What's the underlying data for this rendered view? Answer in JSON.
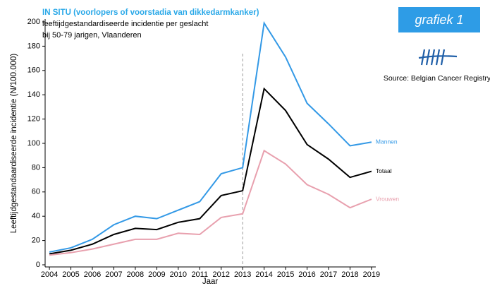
{
  "chart_data": {
    "type": "line",
    "title": "IN SITU (voorlopers of voorstadia van dikkedarmkanker)",
    "subtitle": [
      "leeftijdgestandardiseerde incidentie per geslacht",
      "bij 50-79 jarigen, Vlaanderen"
    ],
    "badge": "grafiek 1",
    "source": "Source: Belgian Cancer Registry",
    "xlabel": "Jaar",
    "ylabel": "Leeftijdgestandaardiseerde incidentie (N/100.000)",
    "x": [
      2004,
      2005,
      2006,
      2007,
      2008,
      2009,
      2010,
      2011,
      2012,
      2013,
      2014,
      2015,
      2016,
      2017,
      2018,
      2019
    ],
    "series": [
      {
        "name": "Mannen",
        "color": "#3399e6",
        "values": [
          10.5,
          14,
          21,
          33,
          40,
          38,
          45,
          52,
          75,
          80,
          199,
          171,
          133,
          116,
          98,
          101
        ]
      },
      {
        "name": "Totaal",
        "color": "#000000",
        "values": [
          9,
          12,
          17,
          25,
          30,
          29,
          35,
          38,
          57,
          61,
          145,
          127,
          99,
          87,
          72,
          77
        ]
      },
      {
        "name": "Vrouwen",
        "color": "#e8a0ae",
        "values": [
          8,
          10,
          13,
          17,
          21,
          21,
          26,
          25,
          39,
          42,
          94,
          83,
          66,
          58,
          47,
          54
        ]
      }
    ],
    "xlim": [
      2003.8,
      2019.2
    ],
    "xticks": [
      2004,
      2005,
      2006,
      2007,
      2008,
      2009,
      2010,
      2011,
      2012,
      2013,
      2014,
      2015,
      2016,
      2017,
      2018,
      2019
    ],
    "ylim": [
      0,
      200
    ],
    "yticks": [
      0,
      20,
      40,
      60,
      80,
      100,
      120,
      140,
      160,
      180,
      200
    ],
    "vline": 2013,
    "grid": false
  }
}
